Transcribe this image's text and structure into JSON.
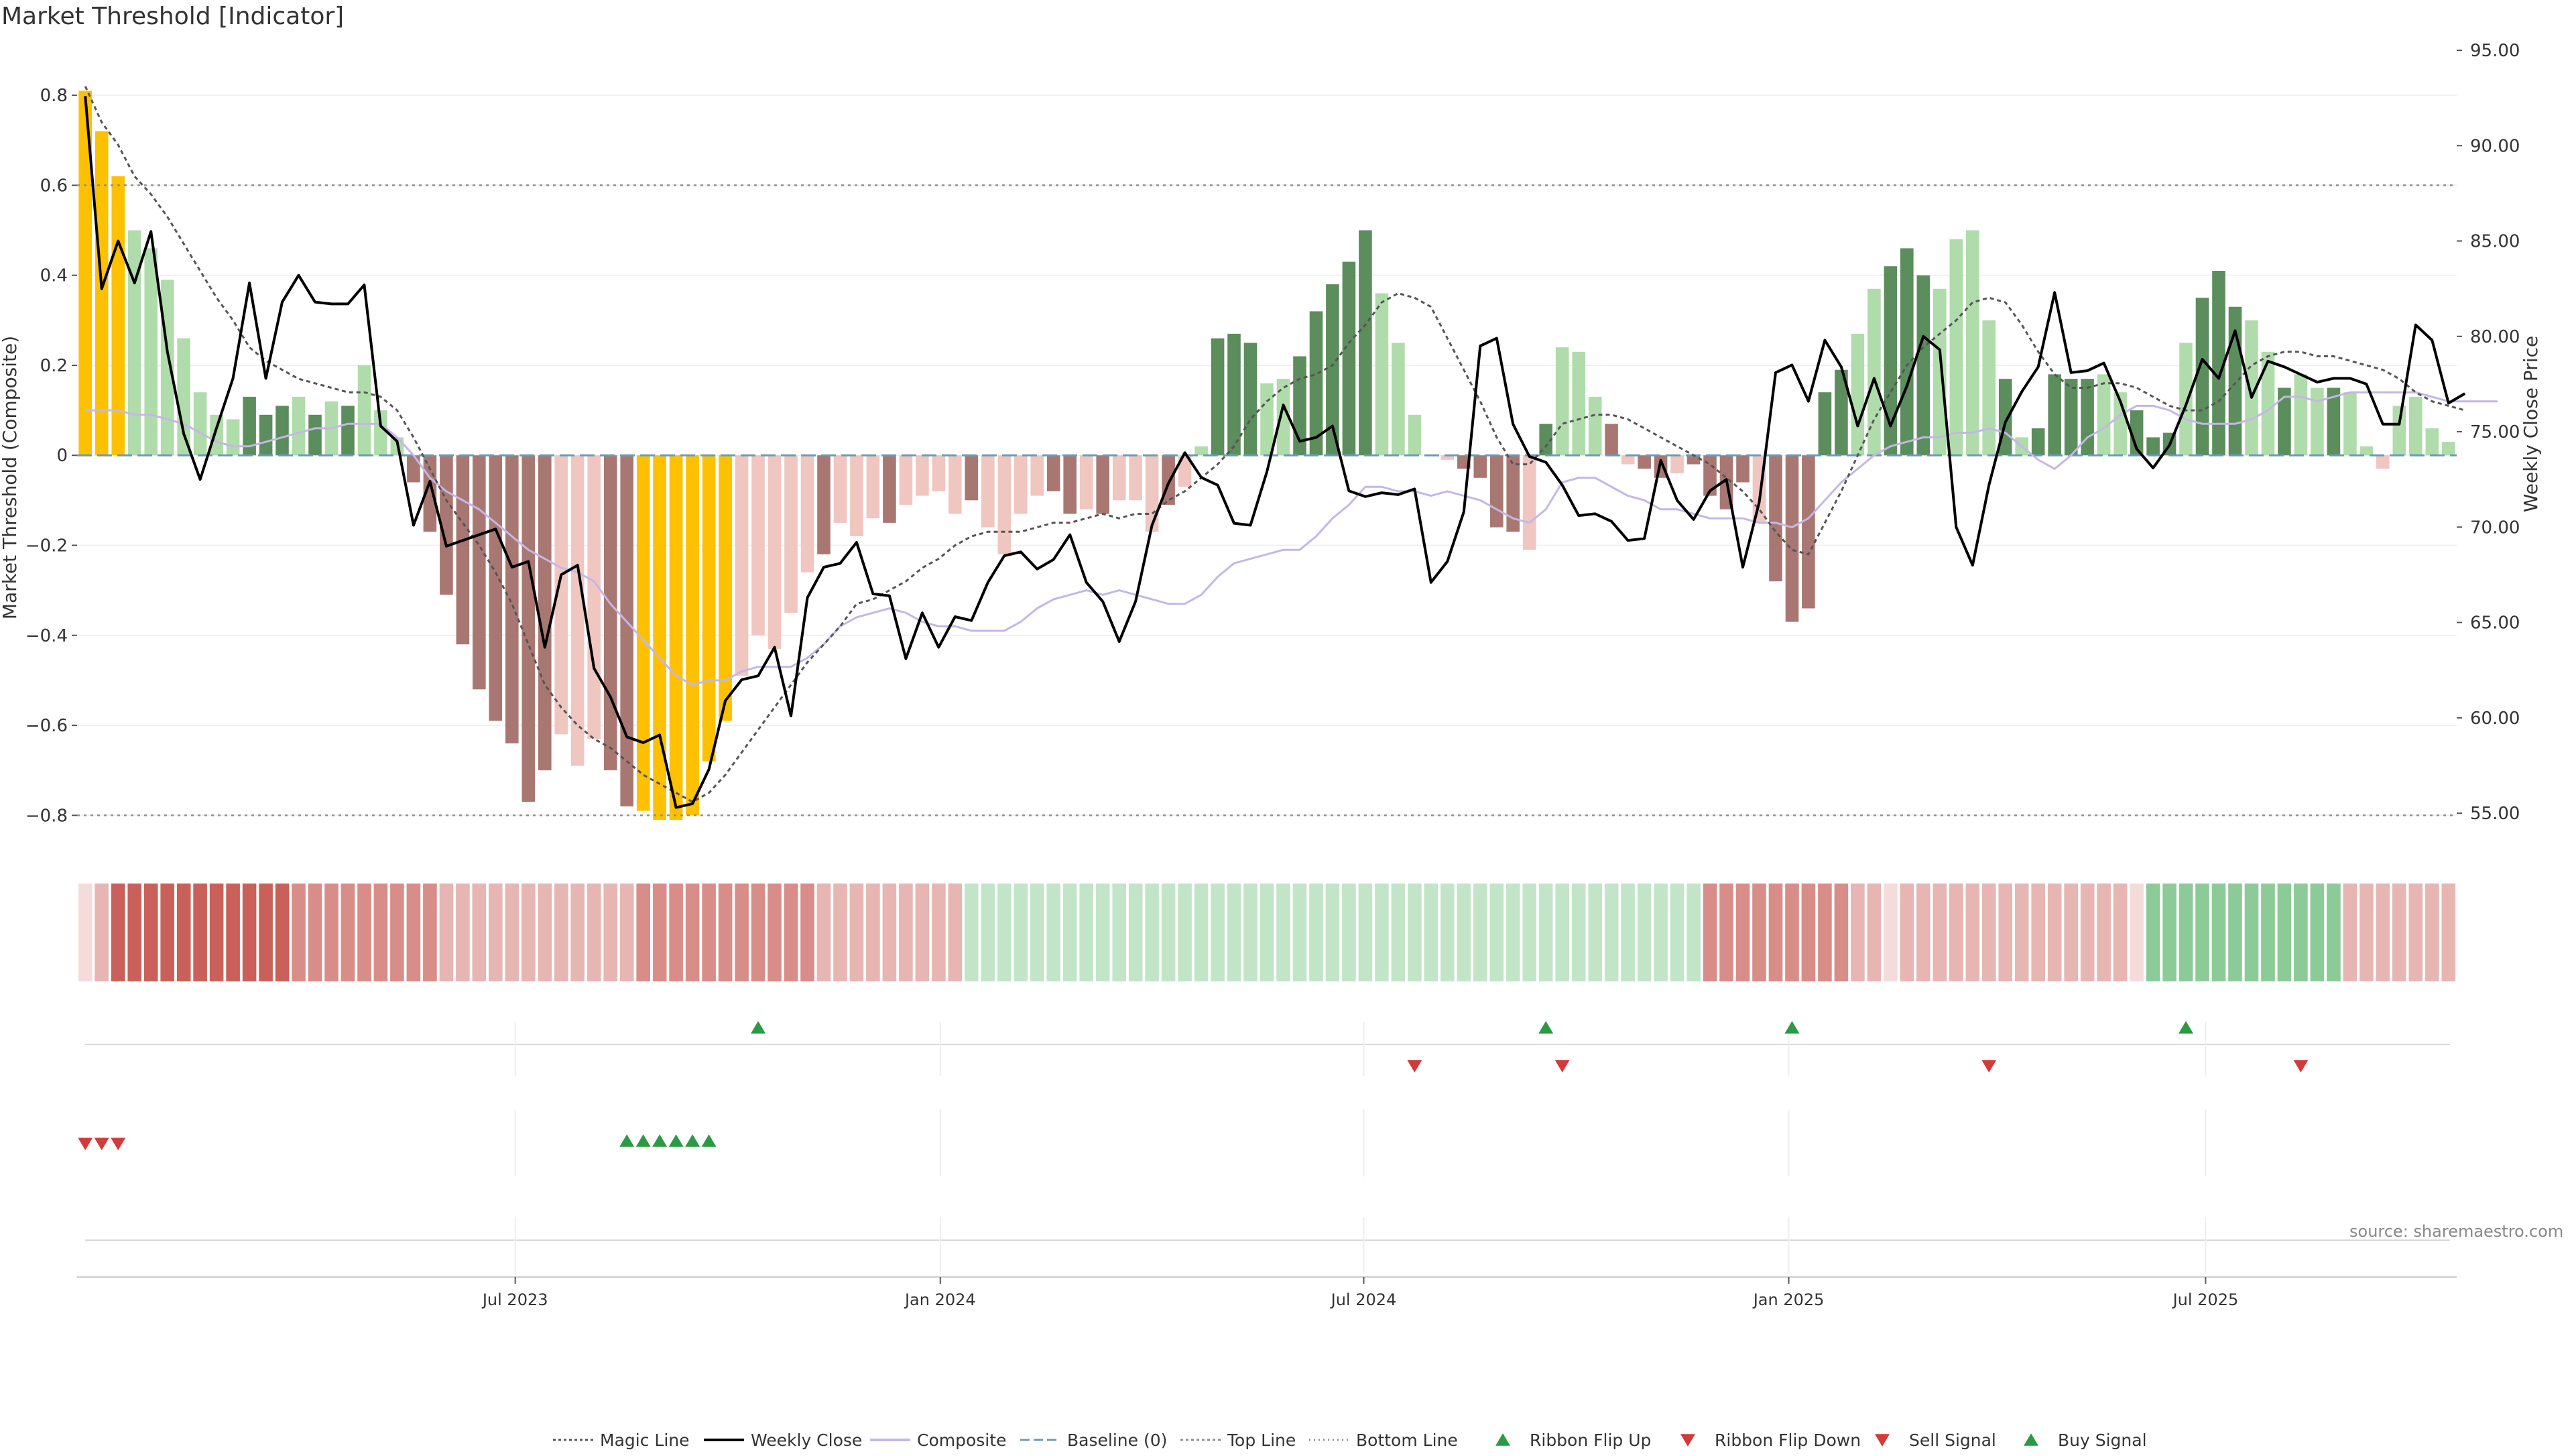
{
  "title": "Market Threshold [Indicator]",
  "source": "source: sharemaestro.com",
  "colors": {
    "strong_green": "#5c8d5c",
    "light_green": "#b0dcab",
    "strong_red": "#a97772",
    "light_red": "#f0c6c1",
    "extreme": "#fdc101",
    "weekly_close": "#000000",
    "composite": "#c4b7e6",
    "magic_line": "#555555",
    "baseline": "#6b9bb4",
    "bands": "#8f8f8f",
    "signal_up": "#2a9a45",
    "signal_down": "#d33a3a"
  },
  "chart_data": {
    "type": "bar",
    "title": "Market Threshold [Indicator]",
    "ylabel_left": "Market Threshold (Composite)",
    "ylabel_right": "Weekly Close Price",
    "ylim_left": [
      -0.88,
      0.9
    ],
    "ylim_right": [
      53.0,
      95.0
    ],
    "yticks_left": [
      "0.8",
      "0.6",
      "0.4",
      "0.2",
      "0",
      "−0.2",
      "−0.4",
      "−0.6",
      "−0.8"
    ],
    "yticks_right": [
      "95.00",
      "90.00",
      "85.00",
      "80.00",
      "75.00",
      "70.00",
      "65.00",
      "60.00",
      "55.00"
    ],
    "top_line": 0.6,
    "bottom_line": -0.8,
    "x_tick_labels": [
      "Jul 2023",
      "Jan 2024",
      "Jul 2024",
      "Jan 2025",
      "Jul 2025"
    ],
    "x_tick_weeks": [
      26.7,
      52.6,
      78.4,
      104.3,
      129.7
    ],
    "composite_bars": [
      0.81,
      0.72,
      0.62,
      0.5,
      0.46,
      0.39,
      0.26,
      0.14,
      0.09,
      0.08,
      0.13,
      0.09,
      0.11,
      0.13,
      0.09,
      0.12,
      0.11,
      0.2,
      0.1,
      0.04,
      -0.06,
      -0.17,
      -0.31,
      -0.42,
      -0.52,
      -0.59,
      -0.64,
      -0.77,
      -0.7,
      -0.62,
      -0.69,
      -0.63,
      -0.7,
      -0.78,
      -0.79,
      -0.81,
      -0.81,
      -0.8,
      -0.68,
      -0.59,
      -0.49,
      -0.4,
      -0.43,
      -0.35,
      -0.26,
      -0.22,
      -0.15,
      -0.18,
      -0.14,
      -0.15,
      -0.11,
      -0.09,
      -0.08,
      -0.13,
      -0.1,
      -0.16,
      -0.22,
      -0.13,
      -0.09,
      -0.08,
      -0.13,
      -0.12,
      -0.13,
      -0.1,
      -0.1,
      -0.17,
      -0.11,
      -0.07,
      0.02,
      0.26,
      0.27,
      0.25,
      0.16,
      0.17,
      0.22,
      0.32,
      0.38,
      0.43,
      0.5,
      0.36,
      0.25,
      0.09,
      0.0,
      -0.01,
      -0.03,
      -0.05,
      -0.16,
      -0.17,
      -0.21,
      0.07,
      0.24,
      0.23,
      0.13,
      0.07,
      -0.02,
      -0.03,
      -0.05,
      -0.04,
      -0.02,
      -0.09,
      -0.12,
      -0.06,
      -0.15,
      -0.28,
      -0.37,
      -0.34,
      0.14,
      0.19,
      0.27,
      0.37,
      0.42,
      0.46,
      0.4,
      0.37,
      0.48,
      0.5,
      0.3,
      0.17,
      0.04,
      0.06,
      0.18,
      0.17,
      0.17,
      0.18,
      0.14,
      0.1,
      0.04,
      0.05,
      0.25,
      0.35,
      0.41,
      0.33,
      0.3,
      0.23,
      0.15,
      0.18,
      0.15,
      0.15,
      0.14,
      0.02,
      -0.03,
      0.11,
      0.13,
      0.06,
      0.03
    ],
    "bar_types": "EEELLLLLLLSSSLSLSLLLRRRRRRRRRLLLRREEEEEELLLLLRLLLRLLLLRLLLLRRLRLLLRLLSSSLLSSSSSLLLLLRRRRLSLLLRLRRLRRRRLSSSSSLLSSSLLLLSLSSSSLLSSSLSSSLLSLLSLLL",
    "weekly_close": [
      92.6,
      82.5,
      85.0,
      82.8,
      85.5,
      79.2,
      74.9,
      72.5,
      75.2,
      77.8,
      82.8,
      77.8,
      81.8,
      83.2,
      81.8,
      81.7,
      81.7,
      82.7,
      75.3,
      74.5,
      70.1,
      72.4,
      69.0,
      69.3,
      69.6,
      69.9,
      67.9,
      68.2,
      63.7,
      67.5,
      68.0,
      62.6,
      61.1,
      59.0,
      58.7,
      59.1,
      55.3,
      55.5,
      57.3,
      60.9,
      62.0,
      62.2,
      63.7,
      60.1,
      66.3,
      67.9,
      68.1,
      69.2,
      66.5,
      66.4,
      63.1,
      65.5,
      63.7,
      65.3,
      65.1,
      67.1,
      68.5,
      68.7,
      67.8,
      68.3,
      69.6,
      67.1,
      66.1,
      64.0,
      66.1,
      70.1,
      72.3,
      73.9,
      72.6,
      72.2,
      70.2,
      70.1,
      72.9,
      76.4,
      74.5,
      74.7,
      75.3,
      71.9,
      71.6,
      71.8,
      71.7,
      72.0,
      67.1,
      68.2,
      70.8,
      79.5,
      79.9,
      75.4,
      73.7,
      73.4,
      72.2,
      70.6,
      70.7,
      70.3,
      69.3,
      69.4,
      73.5,
      71.4,
      70.4,
      71.9,
      72.5,
      67.9,
      71.3,
      78.1,
      78.5,
      76.6,
      79.8,
      78.4,
      75.3,
      77.8,
      75.3,
      77.4,
      80.0,
      79.3,
      70.0,
      68.0,
      72.2,
      75.5,
      77.1,
      78.4,
      82.3,
      78.1,
      78.2,
      78.6,
      76.6,
      74.1,
      73.1,
      74.3,
      76.4,
      78.8,
      77.8,
      80.3,
      76.8,
      78.7,
      78.4,
      78.0,
      77.6,
      77.8,
      77.8,
      77.5,
      75.4,
      75.4,
      80.6,
      79.8,
      76.5,
      77.0
    ],
    "composite_line": [
      0.1,
      0.1,
      0.1,
      0.09,
      0.09,
      0.08,
      0.07,
      0.05,
      0.03,
      0.02,
      0.02,
      0.03,
      0.04,
      0.05,
      0.06,
      0.06,
      0.07,
      0.07,
      0.07,
      0.04,
      0.0,
      -0.05,
      -0.08,
      -0.1,
      -0.12,
      -0.15,
      -0.18,
      -0.21,
      -0.23,
      -0.25,
      -0.26,
      -0.28,
      -0.33,
      -0.37,
      -0.41,
      -0.45,
      -0.49,
      -0.51,
      -0.5,
      -0.5,
      -0.48,
      -0.47,
      -0.47,
      -0.47,
      -0.45,
      -0.42,
      -0.38,
      -0.36,
      -0.35,
      -0.34,
      -0.35,
      -0.37,
      -0.38,
      -0.38,
      -0.39,
      -0.39,
      -0.39,
      -0.37,
      -0.34,
      -0.32,
      -0.31,
      -0.3,
      -0.31,
      -0.3,
      -0.31,
      -0.32,
      -0.33,
      -0.33,
      -0.31,
      -0.27,
      -0.24,
      -0.23,
      -0.22,
      -0.21,
      -0.21,
      -0.18,
      -0.14,
      -0.11,
      -0.07,
      -0.07,
      -0.08,
      -0.08,
      -0.09,
      -0.08,
      -0.09,
      -0.1,
      -0.12,
      -0.14,
      -0.15,
      -0.12,
      -0.06,
      -0.05,
      -0.05,
      -0.07,
      -0.09,
      -0.1,
      -0.12,
      -0.12,
      -0.13,
      -0.14,
      -0.14,
      -0.14,
      -0.15,
      -0.15,
      -0.16,
      -0.14,
      -0.1,
      -0.06,
      -0.03,
      0.0,
      0.02,
      0.03,
      0.04,
      0.04,
      0.05,
      0.05,
      0.06,
      0.05,
      0.02,
      -0.01,
      -0.03,
      0.0,
      0.04,
      0.06,
      0.09,
      0.11,
      0.11,
      0.1,
      0.08,
      0.07,
      0.07,
      0.07,
      0.08,
      0.1,
      0.13,
      0.13,
      0.12,
      0.13,
      0.14,
      0.14,
      0.14,
      0.14,
      0.14,
      0.13,
      0.12,
      0.12,
      0.12,
      0.12
    ],
    "magic_line": [
      0.82,
      0.74,
      0.69,
      0.62,
      0.58,
      0.53,
      0.47,
      0.41,
      0.35,
      0.3,
      0.24,
      0.21,
      0.19,
      0.17,
      0.16,
      0.15,
      0.14,
      0.14,
      0.13,
      0.1,
      0.04,
      -0.03,
      -0.1,
      -0.15,
      -0.2,
      -0.26,
      -0.33,
      -0.42,
      -0.51,
      -0.56,
      -0.6,
      -0.63,
      -0.65,
      -0.68,
      -0.71,
      -0.73,
      -0.75,
      -0.77,
      -0.75,
      -0.71,
      -0.66,
      -0.61,
      -0.56,
      -0.51,
      -0.46,
      -0.42,
      -0.38,
      -0.33,
      -0.32,
      -0.3,
      -0.28,
      -0.25,
      -0.23,
      -0.2,
      -0.18,
      -0.17,
      -0.17,
      -0.17,
      -0.16,
      -0.15,
      -0.15,
      -0.14,
      -0.13,
      -0.14,
      -0.13,
      -0.13,
      -0.1,
      -0.08,
      -0.05,
      -0.02,
      0.02,
      0.08,
      0.12,
      0.15,
      0.17,
      0.18,
      0.2,
      0.25,
      0.29,
      0.34,
      0.36,
      0.35,
      0.33,
      0.26,
      0.19,
      0.12,
      0.04,
      -0.02,
      -0.02,
      0.02,
      0.07,
      0.08,
      0.09,
      0.09,
      0.08,
      0.06,
      0.04,
      0.02,
      0.0,
      -0.02,
      -0.05,
      -0.08,
      -0.12,
      -0.17,
      -0.21,
      -0.22,
      -0.15,
      -0.08,
      0.0,
      0.08,
      0.14,
      0.2,
      0.24,
      0.27,
      0.3,
      0.34,
      0.35,
      0.34,
      0.29,
      0.23,
      0.18,
      0.15,
      0.15,
      0.16,
      0.16,
      0.15,
      0.13,
      0.11,
      0.1,
      0.1,
      0.12,
      0.16,
      0.2,
      0.22,
      0.23,
      0.23,
      0.22,
      0.22,
      0.21,
      0.2,
      0.19,
      0.17,
      0.14,
      0.12,
      0.11,
      0.1
    ],
    "ribbon_levels": "dwSSSSSSSSSSSmmmmmmmmmwwwwwwwwwwwwmmmmmmmmmmmwwwwwwwwwpppppppppppppppppppppppppppppppppppppppppppppmmmmmmmmmwwdwwwwwwwwwwwwwwdPPPPPPPPPPPPwwwwwwwwwwwwpppppppdwwwwwwwwwwwwwwwww",
    "ribbon_flip_up_weeks": [
      41.5,
      89.5,
      104.5,
      128.5
    ],
    "ribbon_flip_down_weeks": [
      81.5,
      90.5,
      116.5,
      135.5
    ],
    "sell_signal_weeks": [
      0.5,
      1.5,
      2.5
    ],
    "buy_signal_weeks": [
      33.5,
      34.5,
      35.5,
      36.5,
      37.5,
      38.5
    ],
    "legend": [
      "Magic Line",
      "Weekly Close",
      "Composite",
      "Baseline (0)",
      "Top Line",
      "Bottom Line",
      "Ribbon Flip Up",
      "Ribbon Flip Down",
      "Sell Signal",
      "Buy Signal"
    ]
  }
}
